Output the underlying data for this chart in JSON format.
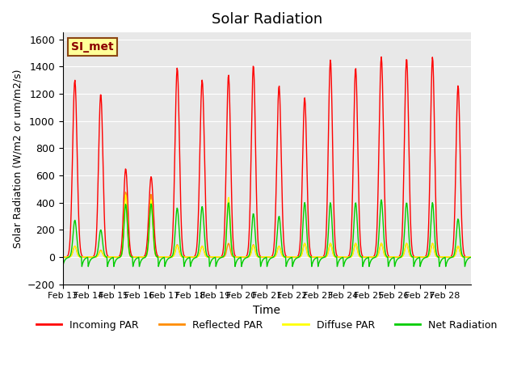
{
  "title": "Solar Radiation",
  "ylabel": "Solar Radiation (W/m2 or um/m2/s)",
  "xlabel": "Time",
  "annotation_label": "SI_met",
  "ylim": [
    -200,
    1650
  ],
  "yticks": [
    -200,
    0,
    200,
    400,
    600,
    800,
    1000,
    1200,
    1400,
    1600
  ],
  "x_tick_labels": [
    "Feb 13",
    "Feb 14",
    "Feb 15",
    "Feb 16",
    "Feb 17",
    "Feb 18",
    "Feb 19",
    "Feb 20",
    "Feb 21",
    "Feb 22",
    "Feb 23",
    "Feb 24",
    "Feb 25",
    "Feb 26",
    "Feb 27",
    "Feb 28"
  ],
  "colors": {
    "incoming": "#FF0000",
    "reflected": "#FF8C00",
    "diffuse": "#FFFF00",
    "net": "#00CC00",
    "background": "#E8E8E8",
    "annotation_bg": "#FFFF99",
    "annotation_border": "#8B4513"
  },
  "legend_labels": [
    "Incoming PAR",
    "Reflected PAR",
    "Diffuse PAR",
    "Net Radiation"
  ],
  "n_days": 16,
  "points_per_day": 48,
  "day_peaks_incoming": [
    1300,
    1200,
    650,
    590,
    1390,
    1300,
    1340,
    1410,
    1260,
    1170,
    1450,
    1390,
    1470,
    1460,
    1470,
    1260
  ],
  "day_peaks_reflected": [
    80,
    50,
    480,
    460,
    90,
    80,
    100,
    90,
    80,
    100,
    100,
    100,
    100,
    100,
    100,
    80
  ],
  "day_peaks_diffuse": [
    80,
    45,
    460,
    420,
    85,
    80,
    440,
    85,
    80,
    100,
    100,
    100,
    100,
    100,
    100,
    80
  ],
  "day_peaks_net": [
    270,
    200,
    390,
    390,
    360,
    370,
    400,
    320,
    300,
    400,
    400,
    400,
    420,
    400,
    400,
    280
  ],
  "net_negative": -70,
  "line_width": 1.0,
  "figsize": [
    6.4,
    4.8
  ],
  "dpi": 100
}
